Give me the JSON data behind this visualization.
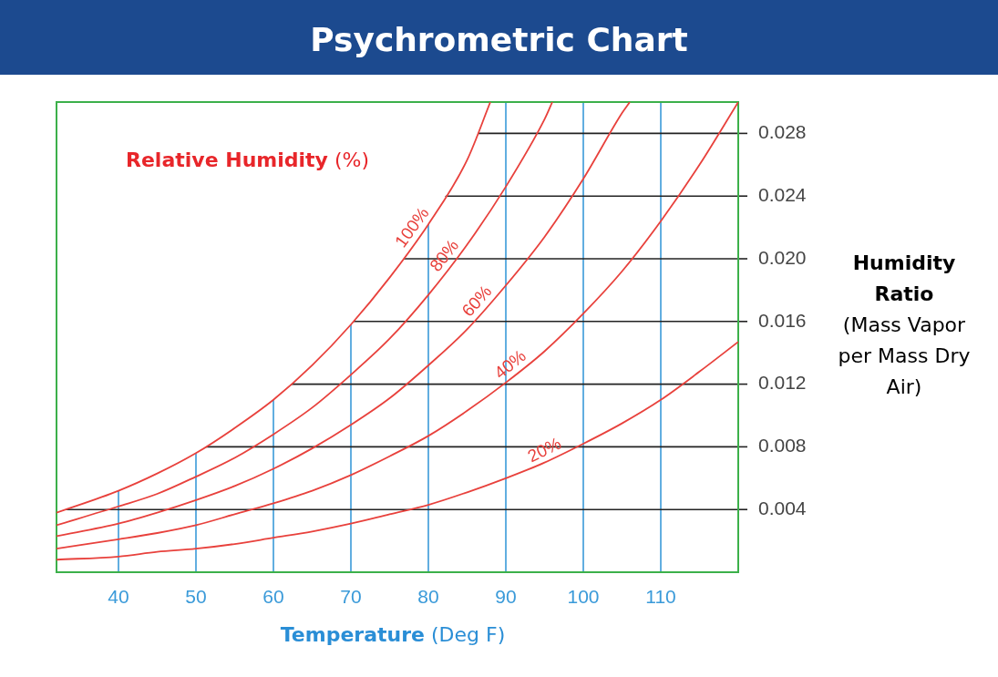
{
  "chart_data": {
    "type": "line",
    "title": "Psychrometric Chart",
    "xlabel": "Temperature (Deg F)",
    "ylabel": "Humidity Ratio (Mass Vapor per Mass Dry Air)",
    "annotations": [
      "Relative Humidity (%)"
    ],
    "xlim": [
      32,
      120
    ],
    "ylim": [
      0,
      0.03
    ],
    "xticks": [
      40,
      50,
      60,
      70,
      80,
      90,
      100,
      110
    ],
    "yticks": [
      0.004,
      0.008,
      0.012,
      0.016,
      {
        "value": 0.02,
        "label": "0.020"
      },
      0.024,
      0.028
    ],
    "grid": true,
    "legend": false,
    "marker": "none",
    "line_style": "solid",
    "series": [
      {
        "name": "100%",
        "color": "#e8413c",
        "x": [
          32,
          40,
          45,
          50,
          55,
          60,
          65,
          70,
          75,
          80,
          85,
          88
        ],
        "values": [
          0.0038,
          0.0052,
          0.0063,
          0.0076,
          0.0092,
          0.011,
          0.0132,
          0.0158,
          0.0188,
          0.0222,
          0.0263,
          0.03
        ]
      },
      {
        "name": "80%",
        "color": "#e8413c",
        "x": [
          32,
          40,
          45,
          50,
          55,
          60,
          65,
          70,
          75,
          80,
          85,
          90,
          95,
          96
        ],
        "values": [
          0.003,
          0.0042,
          0.005,
          0.0061,
          0.0073,
          0.0088,
          0.0105,
          0.0126,
          0.0149,
          0.0177,
          0.0209,
          0.0246,
          0.0289,
          0.03
        ]
      },
      {
        "name": "60%",
        "color": "#e8413c",
        "x": [
          32,
          40,
          45,
          50,
          55,
          60,
          65,
          70,
          75,
          80,
          85,
          90,
          95,
          100,
          105,
          106
        ],
        "values": [
          0.0023,
          0.0031,
          0.0038,
          0.0046,
          0.0055,
          0.0066,
          0.0079,
          0.0094,
          0.0111,
          0.0132,
          0.0155,
          0.0183,
          0.0214,
          0.0251,
          0.0293,
          0.03
        ]
      },
      {
        "name": "40%",
        "color": "#e8413c",
        "x": [
          32,
          40,
          45,
          50,
          55,
          60,
          65,
          70,
          75,
          80,
          85,
          90,
          95,
          100,
          105,
          110,
          115,
          120
        ],
        "values": [
          0.0015,
          0.0021,
          0.0025,
          0.003,
          0.0037,
          0.0044,
          0.0052,
          0.0062,
          0.0074,
          0.0087,
          0.0103,
          0.0121,
          0.0141,
          0.0165,
          0.0192,
          0.0224,
          0.026,
          0.03
        ]
      },
      {
        "name": "20%",
        "color": "#e8413c",
        "x": [
          32,
          40,
          45,
          50,
          55,
          60,
          65,
          70,
          75,
          80,
          85,
          90,
          95,
          100,
          105,
          110,
          115,
          120
        ],
        "values": [
          0.0008,
          0.001,
          0.0013,
          0.0015,
          0.0018,
          0.0022,
          0.0026,
          0.0031,
          0.0037,
          0.0043,
          0.0051,
          0.006,
          0.007,
          0.0082,
          0.0095,
          0.011,
          0.0128,
          0.0147
        ]
      }
    ]
  }
}
